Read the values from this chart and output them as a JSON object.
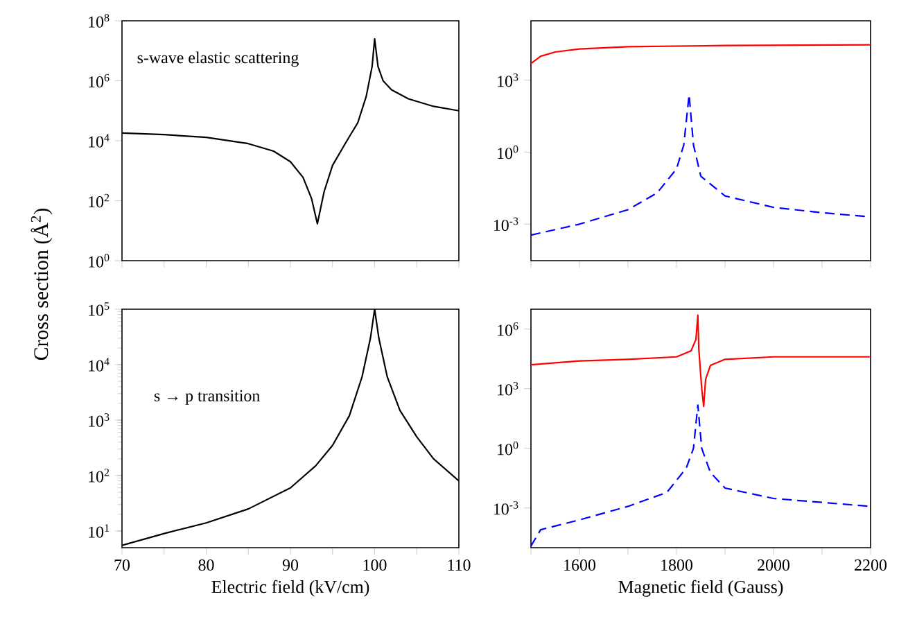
{
  "chart_data": [
    {
      "type": "line",
      "ylabel": "Cross section (Å$^{2}$)",
      "annotations": [
        "s-wave elastic scattering"
      ],
      "log": "y",
      "tick_labels": "y",
      "line_style": "solid",
      "xlim": [
        70,
        110
      ],
      "xticks": [
        {
          "value": 70,
          "label": null
        },
        {
          "value": 75,
          "label": null
        },
        {
          "value": 80,
          "label": null
        },
        {
          "value": 85,
          "label": null
        },
        {
          "value": 90,
          "label": null
        },
        {
          "value": 95,
          "label": null
        },
        {
          "value": 100,
          "label": null
        },
        {
          "value": 105,
          "label": null
        },
        {
          "value": 110,
          "label": null
        }
      ],
      "ylim": [
        1,
        100000000
      ],
      "yticks": [
        {
          "value": 1,
          "label": "10$^{0}$"
        },
        {
          "value": 100,
          "label": "10$^{2}$"
        },
        {
          "value": 10000,
          "label": "10$^{4}$"
        },
        {
          "value": 1000000,
          "label": "10$^{6}$"
        },
        {
          "value": 100000000,
          "label": "10$^{8}$"
        }
      ],
      "series": [
        {
          "color": "#000000",
          "x": [
            70,
            75,
            80,
            85,
            88,
            90,
            91.5,
            92.5,
            93.2,
            94,
            95,
            96.5,
            98,
            99,
            99.7,
            100,
            100.4,
            101,
            102,
            104,
            107,
            110
          ],
          "values": [
            18000,
            16000,
            13000,
            8000,
            4500,
            2000,
            600,
            120,
            17,
            200,
            1500,
            8000,
            40000,
            300000,
            3000000,
            25000000,
            3000000,
            1000000,
            500000,
            250000,
            140000,
            100000
          ]
        }
      ]
    },
    {
      "type": "line",
      "log": "y",
      "tick_labels": "y",
      "xlim": [
        1500,
        2200
      ],
      "xticks": [
        {
          "value": 1500,
          "label": null
        },
        {
          "value": 1600,
          "label": null
        },
        {
          "value": 1700,
          "label": null
        },
        {
          "value": 1800,
          "label": null
        },
        {
          "value": 1900,
          "label": null
        },
        {
          "value": 2000,
          "label": null
        },
        {
          "value": 2100,
          "label": null
        },
        {
          "value": 2200,
          "label": null
        }
      ],
      "ylim": [
        3e-05,
        300000
      ],
      "yticks": [
        {
          "value": 0.001,
          "label": "10$^{-3}$"
        },
        {
          "value": 1,
          "label": "10$^{0}$"
        },
        {
          "value": 1000,
          "label": "10$^{3}$"
        }
      ],
      "series": [
        {
          "color": "#ff0000",
          "line_style": "solid",
          "x": [
            1500,
            1520,
            1550,
            1600,
            1700,
            1900,
            2200
          ],
          "values": [
            5000,
            10000,
            15000,
            20000,
            25000,
            28000,
            30000
          ]
        },
        {
          "color": "#0000ff",
          "line_style": "dashed",
          "x": [
            1500,
            1600,
            1700,
            1760,
            1800,
            1815,
            1826,
            1835,
            1850,
            1900,
            2000,
            2100,
            2200
          ],
          "values": [
            0.00035,
            0.001,
            0.004,
            0.02,
            0.2,
            2,
            250,
            2,
            0.1,
            0.015,
            0.005,
            0.003,
            0.002
          ]
        }
      ]
    },
    {
      "type": "line",
      "xlabel": "Electric field (kV/cm)",
      "annotations": [
        "s → p transition"
      ],
      "log": "y",
      "line_style": "solid",
      "xlim": [
        70,
        110
      ],
      "xticks": [
        70,
        {
          "value": 75,
          "label": null
        },
        80,
        {
          "value": 85,
          "label": null
        },
        90,
        {
          "value": 95,
          "label": null
        },
        100,
        {
          "value": 105,
          "label": null
        },
        110
      ],
      "ylim": [
        5,
        100000
      ],
      "yticks": [
        {
          "value": 10,
          "label": "10$^{1}$"
        },
        {
          "value": 100,
          "label": "10$^{2}$"
        },
        {
          "value": 1000,
          "label": "10$^{3}$"
        },
        {
          "value": 10000,
          "label": "10$^{4}$"
        },
        {
          "value": 100000,
          "label": "10$^{5}$"
        }
      ],
      "series": [
        {
          "color": "#000000",
          "x": [
            70,
            75,
            80,
            85,
            90,
            93,
            95,
            97,
            98.5,
            99.5,
            100,
            100.5,
            101.5,
            103,
            105,
            107,
            110
          ],
          "values": [
            5.5,
            9,
            14,
            25,
            60,
            150,
            350,
            1200,
            6000,
            30000,
            100000,
            30000,
            6000,
            1500,
            500,
            200,
            80
          ]
        }
      ]
    },
    {
      "type": "line",
      "xlabel": "Magnetic field (Gauss)",
      "log": "y",
      "xlim": [
        1500,
        2200
      ],
      "xticks": [
        {
          "value": 1500,
          "label": null
        },
        1600,
        {
          "value": 1700,
          "label": null
        },
        1800,
        {
          "value": 1900,
          "label": null
        },
        2000,
        {
          "value": 2100,
          "label": null
        },
        2200
      ],
      "ylim": [
        1e-05,
        10000000
      ],
      "yticks": [
        {
          "value": 0.001,
          "label": "10$^{-3}$"
        },
        {
          "value": 1,
          "label": "10$^{0}$"
        },
        {
          "value": 1000,
          "label": "10$^{3}$"
        },
        {
          "value": 1000000,
          "label": "10$^{6}$"
        }
      ],
      "series": [
        {
          "color": "#ff0000",
          "line_style": "solid",
          "x": [
            1500,
            1600,
            1700,
            1800,
            1830,
            1840,
            1844,
            1846,
            1852,
            1856,
            1860,
            1870,
            1900,
            2000,
            2200
          ],
          "values": [
            16000,
            25000,
            30000,
            40000,
            80000,
            300000,
            5000000,
            100000,
            1000,
            130,
            3000,
            15000,
            30000,
            40000,
            40000
          ]
        },
        {
          "color": "#0000ff",
          "line_style": "dashed",
          "x": [
            1500,
            1520,
            1600,
            1700,
            1780,
            1820,
            1835,
            1844,
            1852,
            1870,
            1900,
            2000,
            2200
          ],
          "values": [
            1.2e-05,
            8e-05,
            0.00025,
            0.0012,
            0.006,
            0.1,
            1,
            150,
            1,
            0.06,
            0.01,
            0.003,
            0.0012
          ]
        }
      ]
    }
  ]
}
